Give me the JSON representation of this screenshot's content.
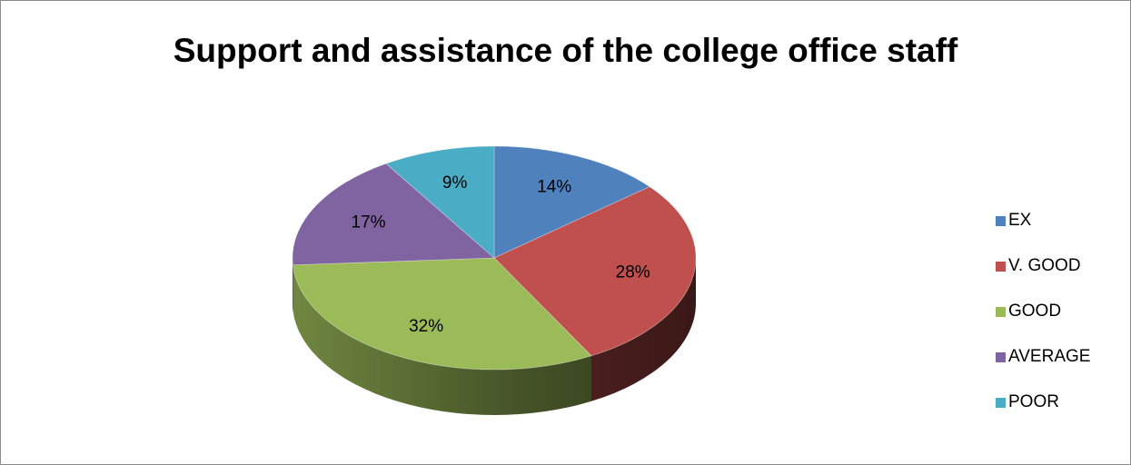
{
  "chart_data": {
    "type": "pie",
    "title": "Support and assistance of the college office staff",
    "categories": [
      "EX",
      "V. GOOD",
      "GOOD",
      "AVERAGE",
      "POOR"
    ],
    "values": [
      14,
      28,
      32,
      17,
      9
    ],
    "labels": [
      "14%",
      "28%",
      "32%",
      "17%",
      "9%"
    ],
    "colors": [
      "#4f81bd",
      "#c0504d",
      "#9bbb59",
      "#8064a2",
      "#4bacc6"
    ],
    "legend_position": "right",
    "style": "3d"
  }
}
